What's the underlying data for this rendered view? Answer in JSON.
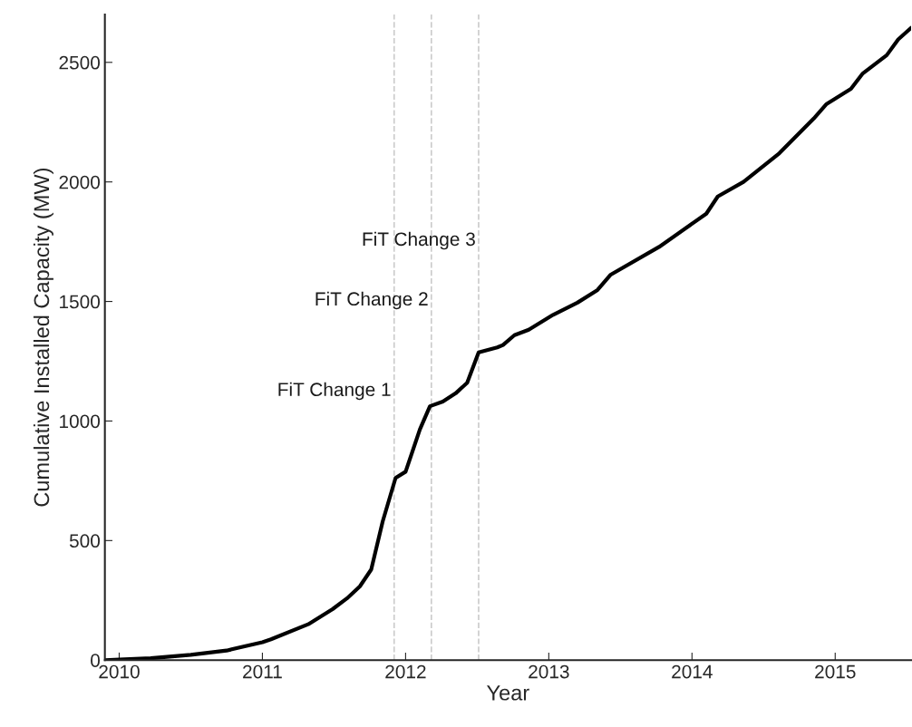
{
  "chart_data": {
    "type": "line",
    "xlabel": "Year",
    "ylabel": "Cumulative Installed Capacity (MW)",
    "x": [
      2009.9,
      2010.0,
      2010.22,
      2010.5,
      2010.75,
      2011.0,
      2011.06,
      2011.32,
      2011.49,
      2011.59,
      2011.68,
      2011.76,
      2011.84,
      2011.93,
      2012.0,
      2012.1,
      2012.17,
      2012.26,
      2012.35,
      2012.43,
      2012.51,
      2012.64,
      2012.68,
      2012.76,
      2012.86,
      2013.03,
      2013.2,
      2013.34,
      2013.43,
      2013.77,
      2014.1,
      2014.18,
      2014.36,
      2014.61,
      2014.85,
      2014.94,
      2015.11,
      2015.19,
      2015.36,
      2015.44,
      2015.53
    ],
    "series": [
      {
        "color": "#000000",
        "values": [
          0,
          2,
          8,
          22,
          40,
          75,
          87,
          150,
          213,
          258,
          308,
          379,
          580,
          762,
          788,
          965,
          1062,
          1081,
          1116,
          1160,
          1287,
          1308,
          1318,
          1359,
          1382,
          1444,
          1495,
          1548,
          1611,
          1728,
          1867,
          1939,
          2000,
          2120,
          2265,
          2326,
          2389,
          2452,
          2530,
          2596,
          2644
        ]
      }
    ],
    "xlim": [
      2009.9,
      2015.53
    ],
    "xticks": [
      2010,
      2011,
      2012,
      2013,
      2014,
      2015
    ],
    "ylim": [
      0,
      2700
    ],
    "yticks": [
      0,
      500,
      1000,
      1500,
      2000,
      2500
    ],
    "ref_lines": [
      {
        "axis": "x",
        "value": 2011.92,
        "color": "#cccccc",
        "line_style": "dashed"
      },
      {
        "axis": "x",
        "value": 2012.18,
        "color": "#cccccc",
        "line_style": "dashed"
      },
      {
        "axis": "x",
        "value": 2012.51,
        "color": "#cccccc",
        "line_style": "dashed"
      }
    ],
    "annotations": [
      {
        "text": "FiT Change 1",
        "x": 2011.92,
        "y": 1125
      },
      {
        "text": "FiT Change 2",
        "x": 2012.18,
        "y": 1504
      },
      {
        "text": "FiT Change 3",
        "x": 2012.51,
        "y": 1754
      }
    ],
    "grid": false,
    "legend": false,
    "marker": "none",
    "line_style": "solid"
  }
}
